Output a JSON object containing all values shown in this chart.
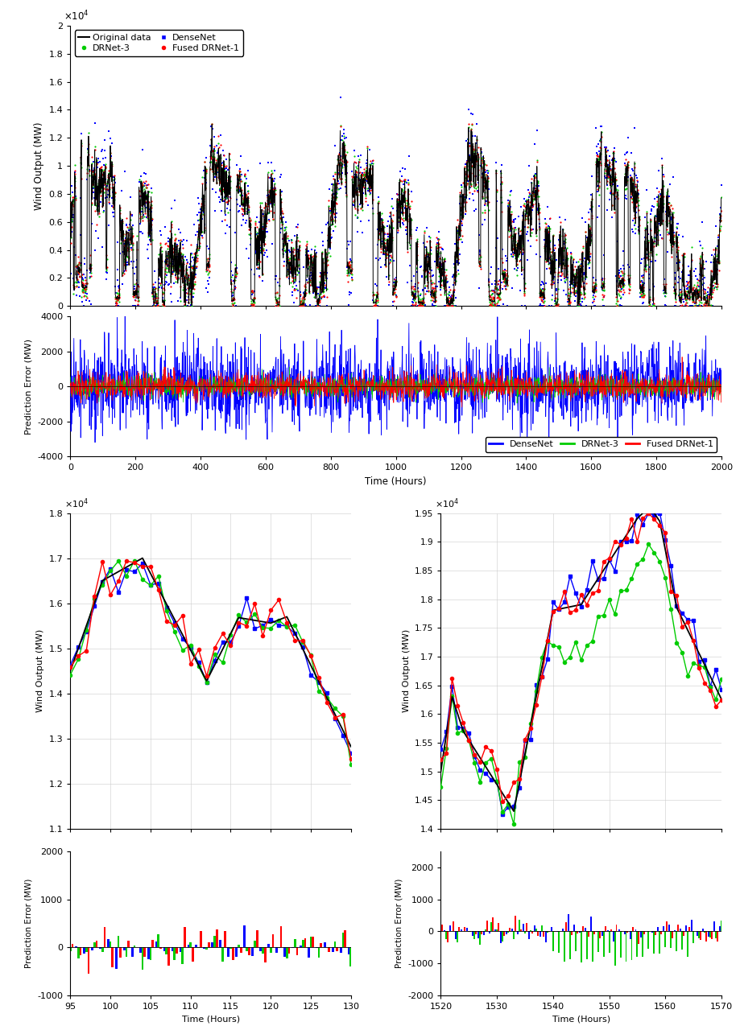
{
  "top_plot": {
    "xlim": [
      0,
      2000
    ],
    "ylim": [
      0,
      20000
    ],
    "yticks_vals": [
      0,
      2000,
      4000,
      6000,
      8000,
      10000,
      12000,
      14000,
      16000,
      18000,
      20000
    ],
    "yticks_labels": [
      "0",
      "0.2",
      "0.4",
      "0.6",
      "0.8",
      "1",
      "1.2",
      "1.4",
      "1.6",
      "1.8",
      "2"
    ],
    "ylabel": "Wind Output (MW)",
    "x10label": "×10⁴"
  },
  "error_plot": {
    "xlim": [
      0,
      2000
    ],
    "ylim": [
      -4000,
      4000
    ],
    "yticks": [
      -4000,
      -2000,
      0,
      2000,
      4000
    ],
    "ylabel": "Prediction Error (MW)",
    "xlabel": "Time (Hours)"
  },
  "zoom1": {
    "xlim": [
      95,
      130
    ],
    "ylim": [
      11000,
      18000
    ],
    "yticks_vals": [
      11000,
      12000,
      13000,
      14000,
      15000,
      16000,
      17000,
      18000
    ],
    "yticks_labels": [
      "1.1",
      "1.2",
      "1.3",
      "1.4",
      "1.5",
      "1.6",
      "1.7",
      "1.8"
    ],
    "xticks": [
      95,
      100,
      105,
      110,
      115,
      120,
      125,
      130
    ],
    "ylabel": "Wind Output (MW)",
    "x10label": "×10⁴"
  },
  "zoom1_error": {
    "xlim": [
      95,
      130
    ],
    "ylim": [
      -1000,
      2000
    ],
    "yticks": [
      -1000,
      0,
      1000,
      2000
    ],
    "xticks": [
      95,
      100,
      105,
      110,
      115,
      120,
      125,
      130
    ],
    "ylabel": "Prediction Error (MW)",
    "xlabel": "Time (Hours)"
  },
  "zoom2": {
    "xlim": [
      1520,
      1570
    ],
    "ylim": [
      14000,
      19500
    ],
    "yticks_vals": [
      14000,
      14500,
      15000,
      15500,
      16000,
      16500,
      17000,
      17500,
      18000,
      18500,
      19000,
      19500
    ],
    "yticks_labels": [
      "1.4",
      "1.45",
      "1.5",
      "1.55",
      "1.6",
      "1.65",
      "1.7",
      "1.75",
      "1.8",
      "1.85",
      "1.9",
      "1.95"
    ],
    "xticks": [
      1520,
      1530,
      1540,
      1550,
      1560,
      1570
    ],
    "ylabel": "Wind Output (MW)",
    "x10label": "×10⁴"
  },
  "zoom2_error": {
    "xlim": [
      1520,
      1570
    ],
    "ylim": [
      -2000,
      2500
    ],
    "yticks": [
      -2000,
      -1000,
      0,
      1000,
      2000
    ],
    "xticks": [
      1520,
      1530,
      1540,
      1550,
      1560,
      1570
    ],
    "ylabel": "Prediction Error (MW)",
    "xlabel": "Time (Hours)"
  },
  "colors": {
    "original": "#000000",
    "densenet": "#0000FF",
    "drnet3": "#00CC00",
    "fused": "#FF0000"
  },
  "background_color": "#ffffff"
}
